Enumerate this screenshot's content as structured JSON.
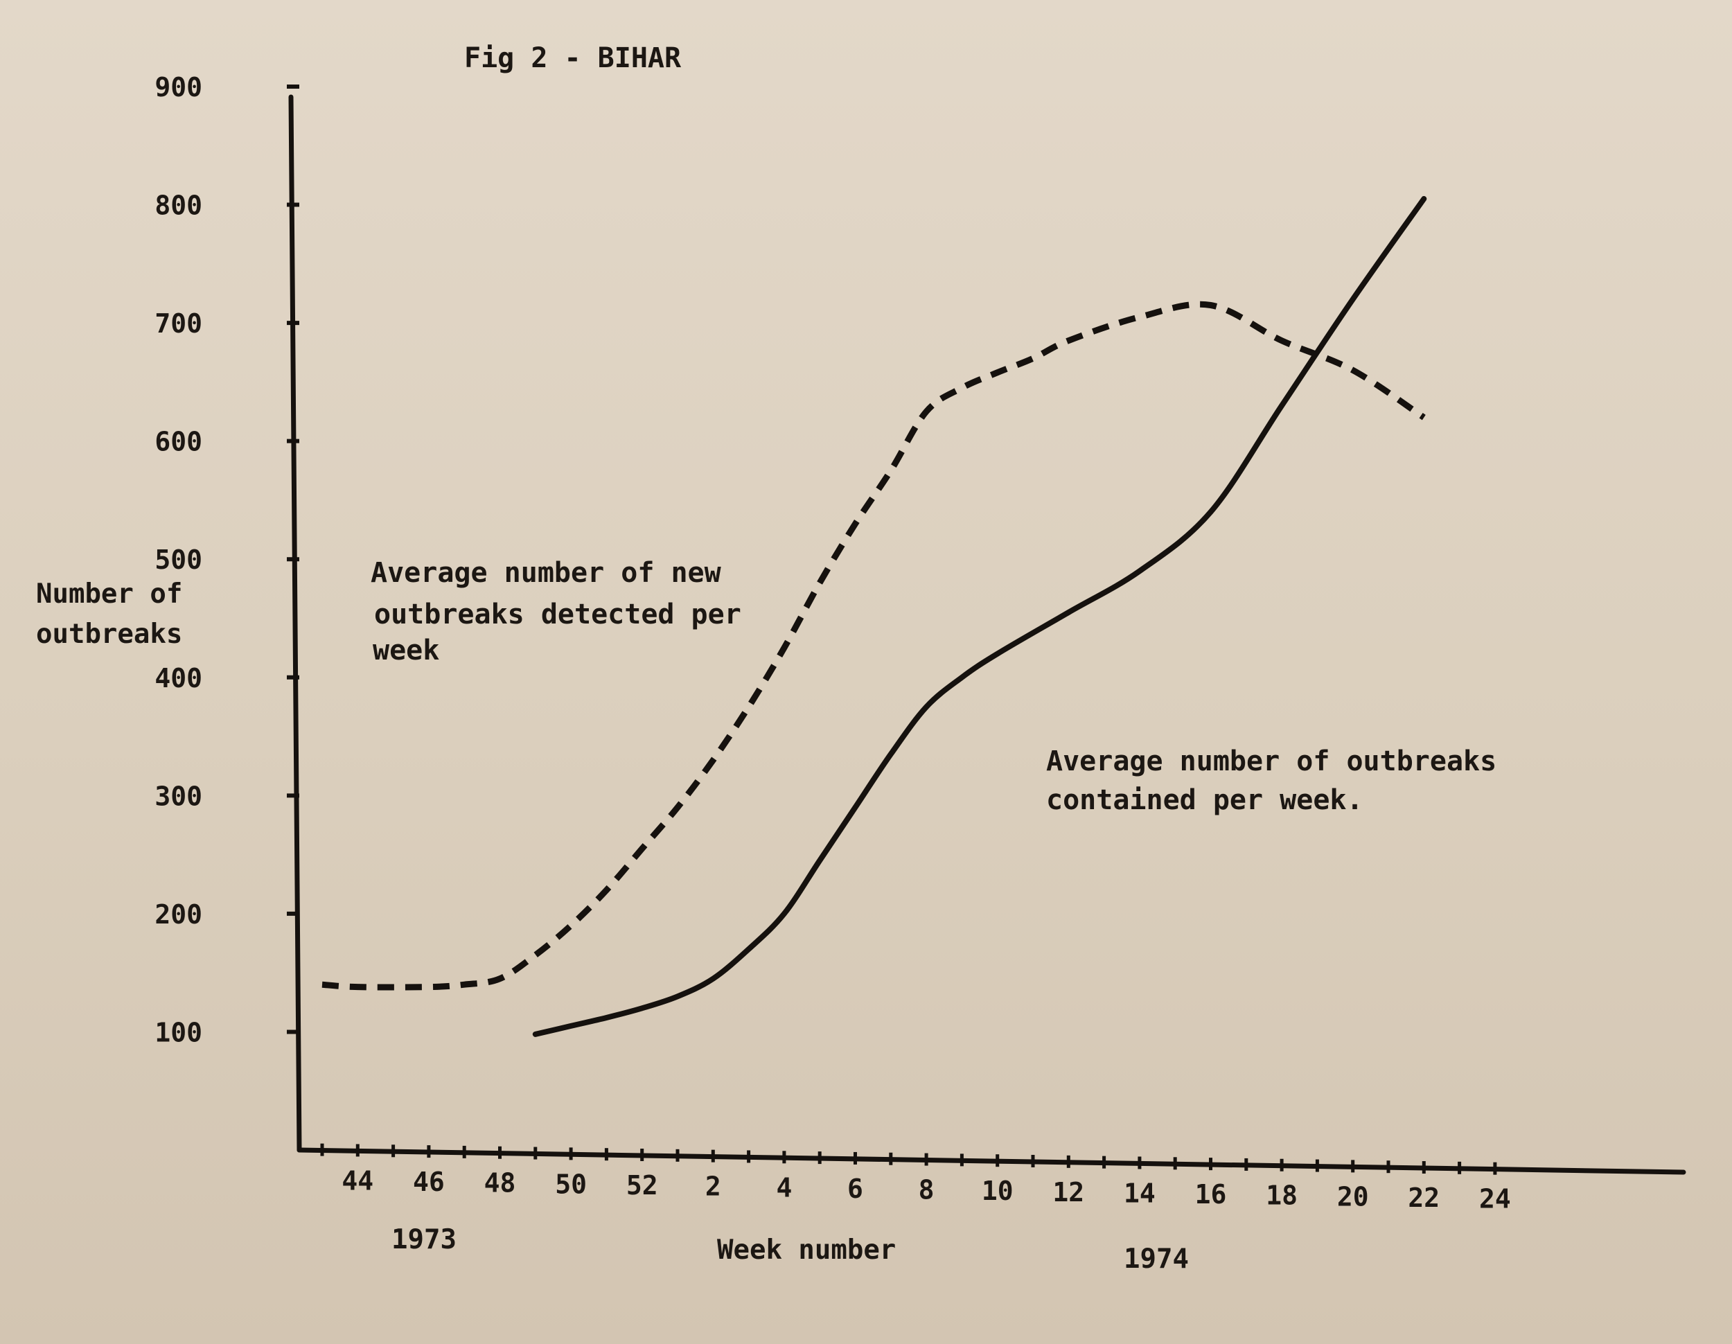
{
  "chart_data": {
    "type": "line",
    "title": "Fig 2 - BIHAR",
    "ylabel": [
      "Number of",
      "outbreaks"
    ],
    "xlabel": "Week number",
    "ylim": [
      0,
      900
    ],
    "yticks": [
      100,
      200,
      300,
      400,
      500,
      600,
      700,
      800,
      900
    ],
    "x_week_labels": [
      "44",
      "46",
      "48",
      "50",
      "52",
      "2",
      "4",
      "6",
      "8",
      "10",
      "12",
      "14",
      "16",
      "18",
      "20",
      "22",
      "24"
    ],
    "year_labels": [
      "1973",
      "1974"
    ],
    "series": [
      {
        "name": "Average number of new outbreaks detected per week",
        "label_lines": [
          "Average number of new",
          "outbreaks detected per",
          "week"
        ],
        "style": "dashed",
        "points": [
          {
            "week": "43",
            "value": 140
          },
          {
            "week": "44",
            "value": 138
          },
          {
            "week": "46",
            "value": 138
          },
          {
            "week": "47",
            "value": 140
          },
          {
            "week": "48",
            "value": 145
          },
          {
            "week": "49",
            "value": 165
          },
          {
            "week": "50",
            "value": 190
          },
          {
            "week": "51",
            "value": 220
          },
          {
            "week": "52",
            "value": 255
          },
          {
            "week": "1",
            "value": 290
          },
          {
            "week": "2",
            "value": 330
          },
          {
            "week": "3",
            "value": 375
          },
          {
            "week": "4",
            "value": 425
          },
          {
            "week": "5",
            "value": 480
          },
          {
            "week": "6",
            "value": 530
          },
          {
            "week": "7",
            "value": 575
          },
          {
            "week": "8",
            "value": 625
          },
          {
            "week": "9",
            "value": 645
          },
          {
            "week": "10",
            "value": 658
          },
          {
            "week": "11",
            "value": 670
          },
          {
            "week": "12",
            "value": 685
          },
          {
            "week": "14",
            "value": 705
          },
          {
            "week": "16",
            "value": 715
          },
          {
            "week": "18",
            "value": 685
          },
          {
            "week": "20",
            "value": 660
          },
          {
            "week": "22",
            "value": 620
          }
        ]
      },
      {
        "name": "Average number of outbreaks contained per week.",
        "label_lines": [
          "Average number of outbreaks",
          "contained per week."
        ],
        "style": "solid",
        "points": [
          {
            "week": "49",
            "value": 98
          },
          {
            "week": "50",
            "value": 105
          },
          {
            "week": "51",
            "value": 112
          },
          {
            "week": "52",
            "value": 120
          },
          {
            "week": "1",
            "value": 130
          },
          {
            "week": "2",
            "value": 145
          },
          {
            "week": "3",
            "value": 170
          },
          {
            "week": "4",
            "value": 200
          },
          {
            "week": "5",
            "value": 245
          },
          {
            "week": "6",
            "value": 290
          },
          {
            "week": "7",
            "value": 335
          },
          {
            "week": "8",
            "value": 375
          },
          {
            "week": "9",
            "value": 400
          },
          {
            "week": "10",
            "value": 420
          },
          {
            "week": "12",
            "value": 455
          },
          {
            "week": "14",
            "value": 490
          },
          {
            "week": "16",
            "value": 540
          },
          {
            "week": "18",
            "value": 630
          },
          {
            "week": "20",
            "value": 720
          },
          {
            "week": "22",
            "value": 805
          }
        ]
      }
    ]
  }
}
